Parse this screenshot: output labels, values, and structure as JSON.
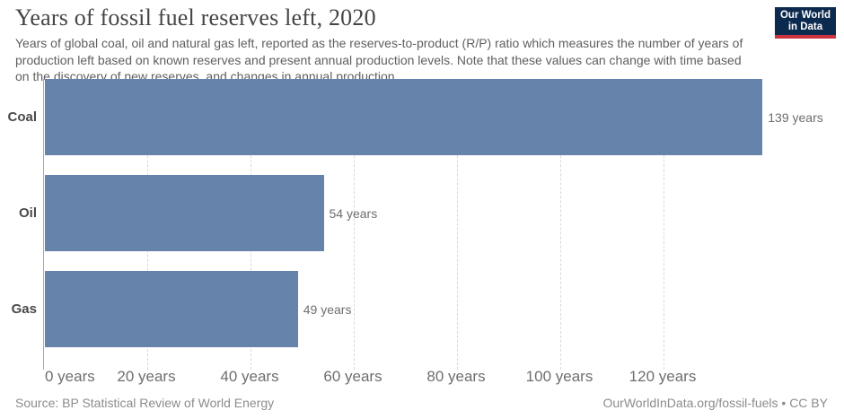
{
  "header": {
    "title": "Years of fossil fuel reserves left, 2020",
    "subtitle": "Years of global coal, oil and natural gas left, reported as the reserves-to-product (R/P) ratio which measures the number of years of production left based on known reserves and present annual production levels. Note that these values can change with time based on the discovery of new reserves, and changes in annual production."
  },
  "logo": {
    "line1": "Our World",
    "line2": "in Data",
    "bg_color": "#0c2a4d",
    "accent_color": "#cc3340"
  },
  "chart_data": {
    "type": "bar",
    "orientation": "horizontal",
    "title": "Years of fossil fuel reserves left, 2020",
    "categories": [
      "Coal",
      "Oil",
      "Gas"
    ],
    "values": [
      139,
      54,
      49
    ],
    "value_labels": [
      "139 years",
      "54 years",
      "49 years"
    ],
    "x_ticks": [
      0,
      20,
      40,
      60,
      80,
      100,
      120
    ],
    "x_tick_labels": [
      "0 years",
      "20 years",
      "40 years",
      "60 years",
      "80 years",
      "100 years",
      "120 years"
    ],
    "xlim": [
      0,
      153
    ],
    "xlabel": "",
    "ylabel": "",
    "grid": true,
    "legend": "none",
    "bar_color": "#6583ab"
  },
  "footer": {
    "source": "Source: BP Statistical Review of World Energy",
    "attribution": "OurWorldInData.org/fossil-fuels • CC BY"
  }
}
